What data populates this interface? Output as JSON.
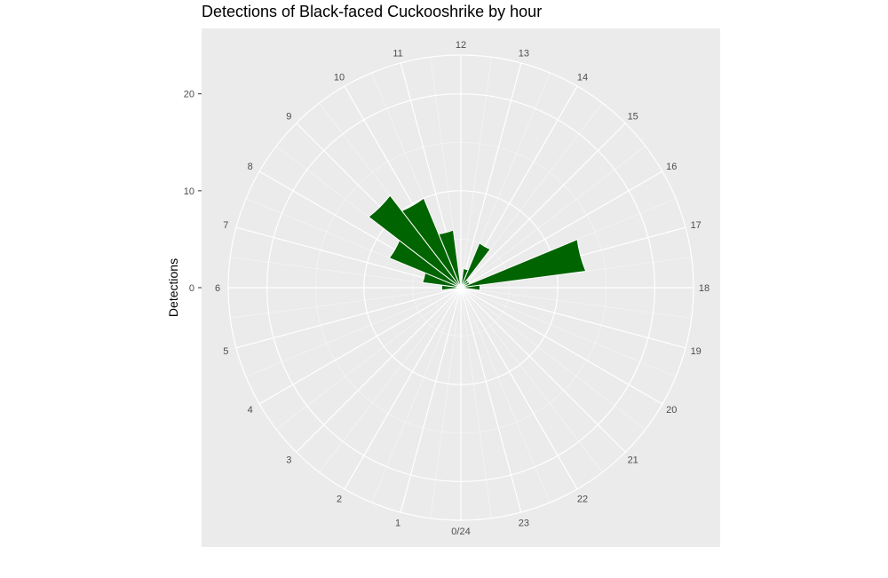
{
  "chart_data": {
    "type": "bar",
    "coord": "polar",
    "title": "Detections of Black-faced Cuckooshrike by hour",
    "ylabel": "Detections",
    "xlabel": "",
    "hour_labels": [
      "0/24",
      "1",
      "2",
      "3",
      "4",
      "5",
      "6",
      "7",
      "8",
      "9",
      "10",
      "11",
      "12",
      "13",
      "14",
      "15",
      "16",
      "17",
      "18",
      "19",
      "20",
      "21",
      "22",
      "23"
    ],
    "y_ticks": [
      0,
      10,
      20
    ],
    "ylim": [
      0,
      24
    ],
    "categories": [
      0,
      1,
      2,
      3,
      4,
      5,
      6,
      7,
      8,
      9,
      10,
      11,
      12,
      13,
      14,
      15,
      16,
      17,
      18,
      19,
      20,
      21,
      22,
      23
    ],
    "values": [
      0,
      0,
      0,
      0,
      0,
      0,
      2,
      4,
      8,
      12,
      10,
      6,
      0,
      2,
      5,
      1,
      1,
      13,
      2,
      0,
      0,
      0,
      0,
      0
    ],
    "bar_color": "#006400",
    "panel_color": "#EBEBEB",
    "grid_color": "#FFFFFF",
    "grid": true,
    "legend": "none"
  }
}
